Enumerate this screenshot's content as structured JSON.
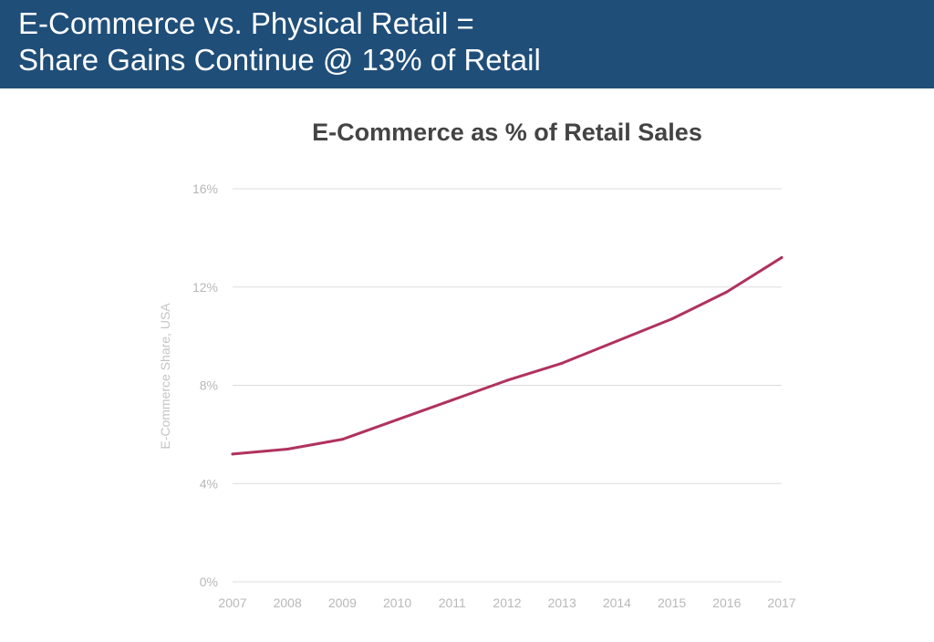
{
  "header": {
    "line1": "E-Commerce vs. Physical Retail =",
    "line2": "Share Gains Continue @ 13% of Retail"
  },
  "colors": {
    "header_bg": "#1f4e79",
    "line": "#b0325e",
    "grid": "#dddddd"
  },
  "chart_data": {
    "type": "line",
    "title": "E-Commerce as % of Retail Sales",
    "xlabel": "",
    "ylabel": "E-Commerce Share, USA",
    "ylim": [
      0,
      16
    ],
    "yticks": [
      0,
      4,
      8,
      12,
      16
    ],
    "ytick_labels": [
      "0%",
      "4%",
      "8%",
      "12%",
      "16%"
    ],
    "grid": true,
    "categories": [
      "2007",
      "2008",
      "2009",
      "2010",
      "2011",
      "2012",
      "2013",
      "2014",
      "2015",
      "2016",
      "2017"
    ],
    "series": [
      {
        "name": "E-Commerce Share, USA",
        "values": [
          5.2,
          5.4,
          5.8,
          6.6,
          7.4,
          8.2,
          8.9,
          9.8,
          10.7,
          11.8,
          13.2
        ]
      }
    ]
  }
}
